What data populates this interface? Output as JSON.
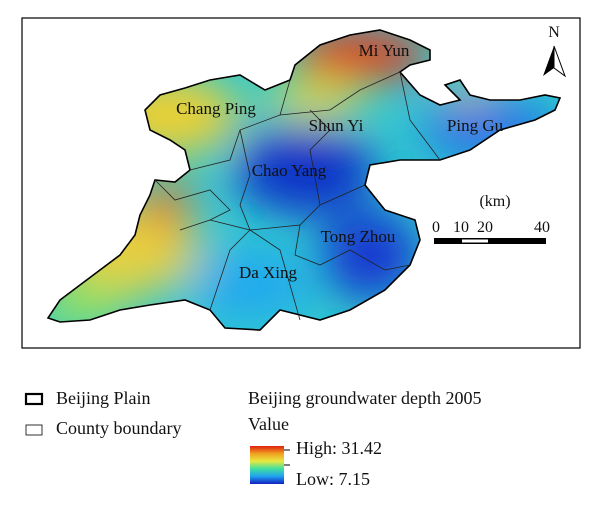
{
  "map": {
    "districts": [
      "Mi Yun",
      "Chang Ping",
      "Shun Yi",
      "Ping Gu",
      "Chao Yang",
      "Tong Zhou",
      "Da Xing"
    ],
    "north": "N",
    "scale": {
      "unit": "(km)",
      "ticks": [
        "0",
        "10",
        "20",
        "40"
      ]
    }
  },
  "legend": {
    "items": [
      "Beijing Plain",
      "County boundary"
    ],
    "title": "Beijing groundwater depth 2005",
    "subtitle": "Value",
    "high": "High: 31.42",
    "low": "Low: 7.15"
  }
}
